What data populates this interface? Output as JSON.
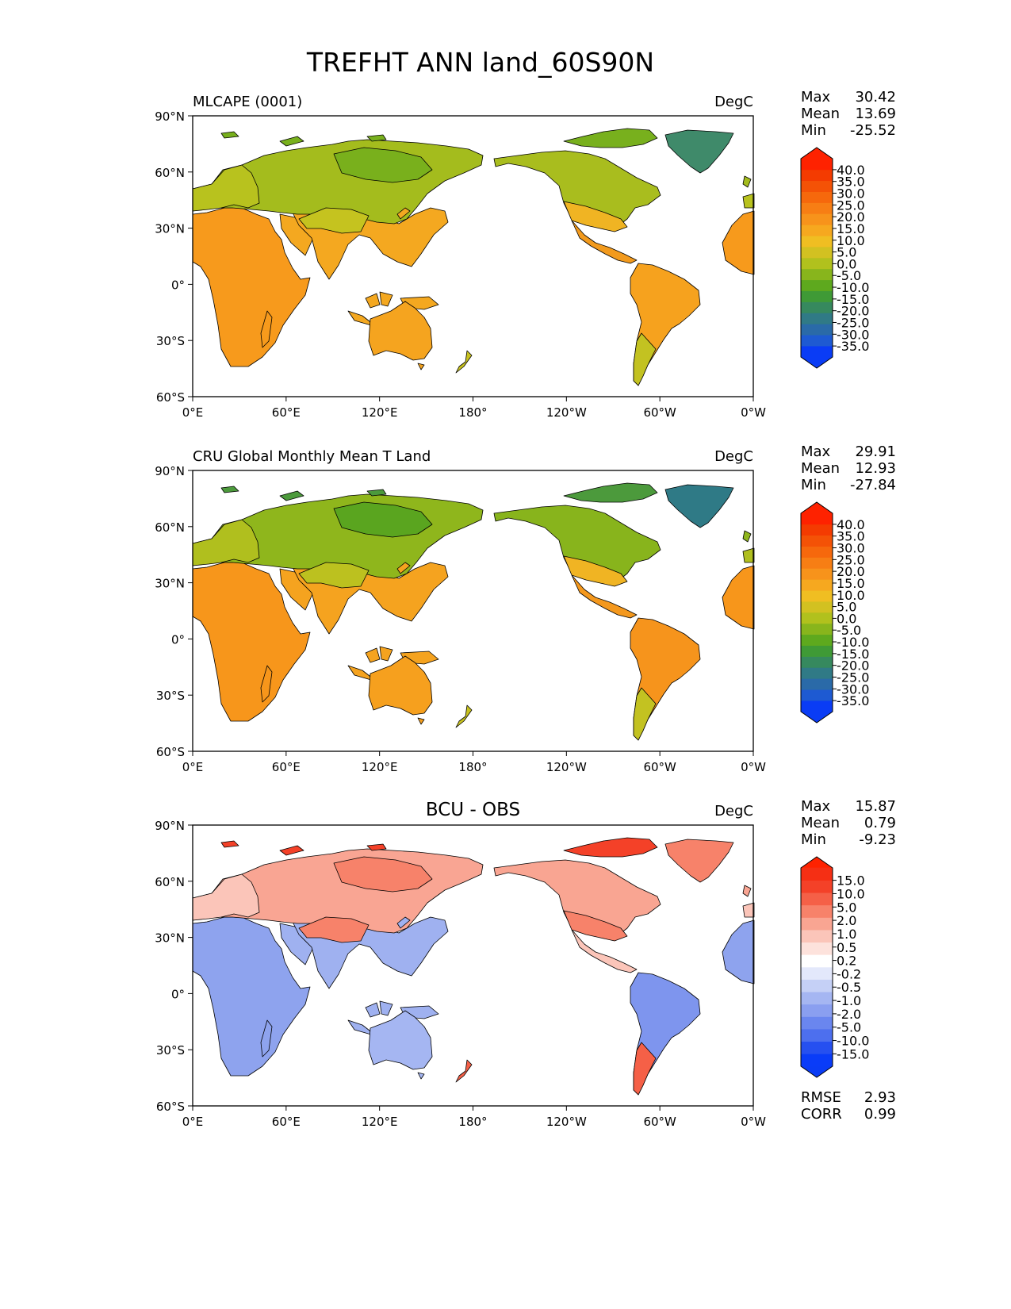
{
  "figure": {
    "title": "TREFHT ANN land_60S90N"
  },
  "axes": {
    "lat_ticks": [
      "90°N",
      "60°N",
      "30°N",
      "0°",
      "30°S",
      "60°S"
    ],
    "lon_ticks": [
      "0°E",
      "60°E",
      "120°E",
      "180°",
      "120°W",
      "60°W",
      "0°W"
    ]
  },
  "panels": [
    {
      "id": "test",
      "left_title": "MLCAPE (0001)",
      "center_title": "",
      "units": "DegC",
      "stats": {
        "max_label": "Max",
        "max": "30.42",
        "mean_label": "Mean",
        "mean": "13.69",
        "min_label": "Min",
        "min": "-25.52"
      },
      "colorbar": {
        "labels": [
          "40.0",
          "35.0",
          "30.0",
          "25.0",
          "20.0",
          "15.0",
          "10.0",
          "5.0",
          "0.0",
          "-5.0",
          "-10.0",
          "-15.0",
          "-20.0",
          "-25.0",
          "-30.0",
          "-35.0"
        ],
        "colors": [
          "#0a3cf5",
          "#1e5ad2",
          "#2a6aa8",
          "#307a86",
          "#36895e",
          "#3f9a36",
          "#5ea91e",
          "#88b51c",
          "#b1c11d",
          "#d2c121",
          "#f0be22",
          "#f6a81f",
          "#f7931b",
          "#f77e14",
          "#f6680c",
          "#f45206",
          "#f43b01",
          "#fe2200"
        ],
        "max_color": "#fe2200",
        "min_color": "#0a3cf5"
      },
      "fields": {
        "africa": "#f79a1c",
        "asia_north": "#a4bc1d",
        "asia_south": "#f4a820",
        "tibet": "#c5c31f",
        "siberia": "#79b01c",
        "europe": "#b8c21e",
        "australia": "#f5a41f",
        "north_america": "#a9bd1e",
        "na_south": "#f0b423",
        "central_america": "#f29a1d",
        "south_america": "#f6a21e",
        "patagonia": "#c3c221",
        "greenland": "#3f8a6a",
        "arctic_islands": "#78b01d",
        "nz": "#c8c21f"
      }
    },
    {
      "id": "ref",
      "left_title": "CRU Global Monthly Mean T Land",
      "center_title": "",
      "units": "DegC",
      "stats": {
        "max_label": "Max",
        "max": "29.91",
        "mean_label": "Mean",
        "mean": "12.93",
        "min_label": "Min",
        "min": "-27.84"
      },
      "colorbar": {
        "labels": [
          "40.0",
          "35.0",
          "30.0",
          "25.0",
          "20.0",
          "15.0",
          "10.0",
          "5.0",
          "0.0",
          "-5.0",
          "-10.0",
          "-15.0",
          "-20.0",
          "-25.0",
          "-30.0",
          "-35.0"
        ],
        "colors": [
          "#0a3cf5",
          "#1e5ad2",
          "#2a6aa8",
          "#307a86",
          "#36895e",
          "#3f9a36",
          "#5ea91e",
          "#88b51c",
          "#b1c11d",
          "#d2c121",
          "#f0be22",
          "#f6a81f",
          "#f7931b",
          "#f77e14",
          "#f6680c",
          "#f45206",
          "#f43b01",
          "#fe2200"
        ],
        "max_color": "#fe2200",
        "min_color": "#0a3cf5"
      },
      "fields": {
        "africa": "#f7961b",
        "asia_north": "#8fb61c",
        "asia_south": "#f5a31f",
        "tibet": "#bcc11f",
        "siberia": "#5aa51f",
        "europe": "#b0bf1e",
        "australia": "#f6a01e",
        "north_america": "#88b41c",
        "na_south": "#f0b423",
        "central_america": "#f4981d",
        "south_america": "#f6941c",
        "patagonia": "#c3c221",
        "greenland": "#2f7a86",
        "arctic_islands": "#4c9a3c",
        "nz": "#c8c21f"
      }
    },
    {
      "id": "diff",
      "left_title": "",
      "center_title": "BCU - OBS",
      "units": "DegC",
      "stats": {
        "max_label": "Max",
        "max": "15.87",
        "mean_label": "Mean",
        "mean": "0.79",
        "min_label": "Min",
        "min": "-9.23"
      },
      "colorbar": {
        "labels": [
          "15.0",
          "10.0",
          "5.0",
          "2.0",
          "1.0",
          "0.5",
          "0.2",
          "-0.2",
          "-0.5",
          "-1.0",
          "-2.0",
          "-5.0",
          "-10.0",
          "-15.0"
        ],
        "colors": [
          "#0a3cf8",
          "#2650f0",
          "#4d6fee",
          "#6a86ef",
          "#8a9ff0",
          "#a5b6f2",
          "#c5d0f6",
          "#e3e8fb",
          "#ffffff",
          "#fde2dc",
          "#fbc5b9",
          "#f9a592",
          "#f7826a",
          "#f56047",
          "#f44128",
          "#f52f14"
        ],
        "max_color": "#fe2200",
        "min_color": "#0a3cf5"
      },
      "fields": {
        "africa": "#8ea3ee",
        "asia_north": "#f9a593",
        "asia_south": "#9fb1f0",
        "tibet": "#f7826a",
        "siberia": "#f7826a",
        "europe": "#fbc5b9",
        "australia": "#a5b6f2",
        "north_america": "#f9a592",
        "na_south": "#f7826a",
        "central_america": "#fbc5b9",
        "south_america": "#7e95ee",
        "patagonia": "#f56047",
        "greenland": "#f7826a",
        "arctic_islands": "#f44128",
        "nz": "#f56047"
      }
    }
  ],
  "metrics": {
    "rmse_label": "RMSE",
    "rmse": "2.93",
    "corr_label": "CORR",
    "corr": "0.99"
  }
}
